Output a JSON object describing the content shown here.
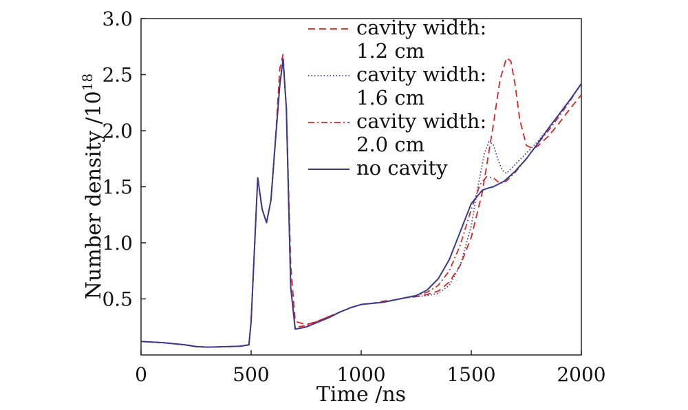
{
  "chart_data": {
    "type": "line",
    "title": "",
    "xlabel": "Time /ns",
    "ylabel_main": "Number density /10",
    "ylabel_exponent": "18",
    "xlim": [
      0,
      2000
    ],
    "ylim": [
      0,
      3.0
    ],
    "xticks": [
      0,
      500,
      1000,
      1500,
      2000
    ],
    "xtick_labels": [
      "0",
      "500",
      "1000",
      "1500",
      "2000"
    ],
    "yticks": [
      0.5,
      1.0,
      1.5,
      2.0,
      2.5,
      3.0
    ],
    "ytick_labels": [
      "0.5",
      "1.0",
      "1.5",
      "2.0",
      "2.5",
      "3.0"
    ],
    "grid": false,
    "legend_position": "top-right",
    "series": [
      {
        "name": "cavity width: 1.2 cm",
        "label_lines": [
          "cavity width:",
          "1.2 cm"
        ],
        "color": "#e02020",
        "style": "dashed",
        "x": [
          0,
          100,
          200,
          250,
          300,
          350,
          400,
          450,
          490,
          500,
          530,
          550,
          570,
          590,
          610,
          630,
          645,
          660,
          680,
          700,
          750,
          800,
          850,
          900,
          950,
          1000,
          1050,
          1100,
          1150,
          1200,
          1250,
          1300,
          1350,
          1400,
          1450,
          1500,
          1550,
          1600,
          1630,
          1660,
          1680,
          1700,
          1720,
          1750,
          1780,
          1800,
          1850,
          1900,
          1950,
          2000
        ],
        "y": [
          0.12,
          0.11,
          0.09,
          0.075,
          0.07,
          0.072,
          0.075,
          0.078,
          0.09,
          0.3,
          1.58,
          1.3,
          1.18,
          1.38,
          1.9,
          2.55,
          2.68,
          2.2,
          0.8,
          0.3,
          0.27,
          0.3,
          0.34,
          0.38,
          0.42,
          0.45,
          0.46,
          0.48,
          0.49,
          0.51,
          0.52,
          0.54,
          0.57,
          0.65,
          0.8,
          1.05,
          1.45,
          2.05,
          2.45,
          2.65,
          2.62,
          2.4,
          2.1,
          1.87,
          1.84,
          1.86,
          1.95,
          2.07,
          2.2,
          2.32
        ]
      },
      {
        "name": "cavity width: 1.6 cm",
        "label_lines": [
          "cavity width:",
          "1.6 cm"
        ],
        "color": "#3a3aa0",
        "style": "dotted",
        "x": [
          0,
          100,
          200,
          250,
          300,
          350,
          400,
          450,
          490,
          500,
          530,
          550,
          570,
          590,
          610,
          630,
          645,
          660,
          680,
          700,
          750,
          800,
          850,
          900,
          950,
          1000,
          1050,
          1100,
          1150,
          1200,
          1250,
          1300,
          1350,
          1400,
          1450,
          1500,
          1530,
          1560,
          1580,
          1600,
          1620,
          1640,
          1660,
          1700,
          1750,
          1800,
          1850,
          1900,
          1950,
          2000
        ],
        "y": [
          0.12,
          0.11,
          0.09,
          0.075,
          0.07,
          0.072,
          0.075,
          0.078,
          0.09,
          0.3,
          1.58,
          1.3,
          1.18,
          1.38,
          1.9,
          2.4,
          2.64,
          2.2,
          0.6,
          0.23,
          0.25,
          0.29,
          0.33,
          0.38,
          0.42,
          0.45,
          0.46,
          0.47,
          0.49,
          0.51,
          0.52,
          0.53,
          0.55,
          0.62,
          0.8,
          1.15,
          1.5,
          1.8,
          1.9,
          1.88,
          1.75,
          1.65,
          1.62,
          1.7,
          1.8,
          1.9,
          2.02,
          2.15,
          2.28,
          2.42
        ]
      },
      {
        "name": "cavity width: 2.0 cm",
        "label_lines": [
          "cavity width:",
          "2.0 cm"
        ],
        "color": "#d02a2a",
        "style": "dashdot",
        "x": [
          0,
          100,
          200,
          250,
          300,
          350,
          400,
          450,
          490,
          500,
          530,
          550,
          570,
          590,
          610,
          630,
          645,
          660,
          680,
          700,
          750,
          800,
          850,
          900,
          950,
          1000,
          1050,
          1100,
          1150,
          1200,
          1250,
          1300,
          1350,
          1400,
          1450,
          1500,
          1540,
          1570,
          1600,
          1630,
          1660,
          1700,
          1750,
          1800,
          1850,
          1900,
          1950,
          2000
        ],
        "y": [
          0.12,
          0.11,
          0.09,
          0.075,
          0.07,
          0.072,
          0.075,
          0.078,
          0.09,
          0.3,
          1.58,
          1.3,
          1.18,
          1.38,
          1.9,
          2.4,
          2.64,
          2.2,
          0.6,
          0.25,
          0.26,
          0.3,
          0.34,
          0.38,
          0.42,
          0.45,
          0.46,
          0.47,
          0.49,
          0.51,
          0.53,
          0.56,
          0.62,
          0.75,
          0.98,
          1.3,
          1.52,
          1.59,
          1.58,
          1.53,
          1.55,
          1.63,
          1.75,
          1.88,
          2.0,
          2.13,
          2.27,
          2.42
        ]
      },
      {
        "name": "no cavity",
        "label_lines": [
          "no cavity"
        ],
        "color": "#3a3a8c",
        "style": "solid",
        "x": [
          0,
          100,
          200,
          250,
          300,
          350,
          400,
          450,
          490,
          500,
          530,
          550,
          570,
          590,
          610,
          630,
          645,
          660,
          680,
          700,
          750,
          800,
          850,
          900,
          950,
          1000,
          1050,
          1100,
          1150,
          1200,
          1250,
          1300,
          1350,
          1400,
          1450,
          1500,
          1550,
          1580,
          1600,
          1650,
          1700,
          1750,
          1800,
          1850,
          1900,
          1950,
          2000
        ],
        "y": [
          0.12,
          0.11,
          0.09,
          0.075,
          0.07,
          0.072,
          0.075,
          0.078,
          0.09,
          0.3,
          1.58,
          1.3,
          1.18,
          1.38,
          1.9,
          2.4,
          2.64,
          2.2,
          0.6,
          0.23,
          0.25,
          0.29,
          0.33,
          0.38,
          0.42,
          0.45,
          0.46,
          0.47,
          0.49,
          0.51,
          0.53,
          0.58,
          0.68,
          0.85,
          1.1,
          1.35,
          1.47,
          1.49,
          1.5,
          1.55,
          1.64,
          1.75,
          1.88,
          2.02,
          2.15,
          2.28,
          2.42
        ]
      }
    ]
  }
}
